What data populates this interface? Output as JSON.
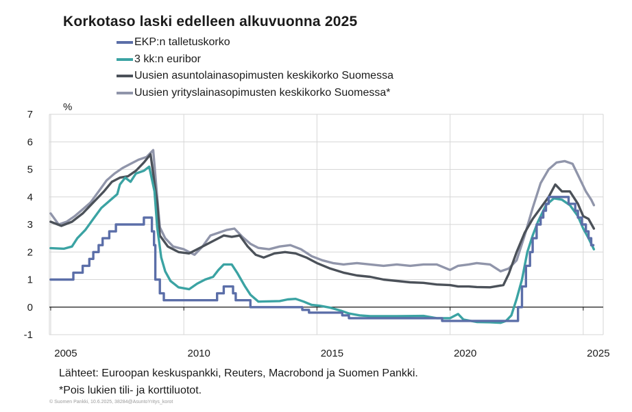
{
  "chart_data": {
    "type": "line",
    "title": "Korkotaso laski edelleen alkuvuonna  2025",
    "ylabel": "%",
    "xlabel": "",
    "ylim": [
      -1,
      7
    ],
    "xlim": [
      2004.95,
      2025.75
    ],
    "y_ticks": [
      -1,
      0,
      1,
      2,
      3,
      4,
      5,
      6,
      7
    ],
    "x_ticks": [
      2005,
      2010,
      2015,
      2020,
      2025
    ],
    "x_tick_labels": [
      "2005",
      "2010",
      "2015",
      "2020",
      "2025"
    ],
    "grid": true,
    "legend_position": "top",
    "series": [
      {
        "name": "EKP:n talletuskorko",
        "color": "#5b6ea8",
        "points": [
          [
            2005.0,
            1.0
          ],
          [
            2005.85,
            1.0
          ],
          [
            2005.85,
            1.25
          ],
          [
            2006.2,
            1.25
          ],
          [
            2006.2,
            1.5
          ],
          [
            2006.45,
            1.5
          ],
          [
            2006.45,
            1.75
          ],
          [
            2006.6,
            1.75
          ],
          [
            2006.6,
            2.0
          ],
          [
            2006.8,
            2.0
          ],
          [
            2006.8,
            2.25
          ],
          [
            2006.95,
            2.25
          ],
          [
            2006.95,
            2.5
          ],
          [
            2007.2,
            2.5
          ],
          [
            2007.2,
            2.75
          ],
          [
            2007.45,
            2.75
          ],
          [
            2007.45,
            3.0
          ],
          [
            2008.5,
            3.0
          ],
          [
            2008.5,
            3.25
          ],
          [
            2008.8,
            3.25
          ],
          [
            2008.8,
            2.75
          ],
          [
            2008.88,
            2.75
          ],
          [
            2008.88,
            2.25
          ],
          [
            2008.93,
            2.25
          ],
          [
            2008.93,
            1.0
          ],
          [
            2009.1,
            1.0
          ],
          [
            2009.1,
            0.5
          ],
          [
            2009.25,
            0.5
          ],
          [
            2009.25,
            0.25
          ],
          [
            2011.25,
            0.25
          ],
          [
            2011.25,
            0.5
          ],
          [
            2011.5,
            0.5
          ],
          [
            2011.5,
            0.75
          ],
          [
            2011.85,
            0.75
          ],
          [
            2011.85,
            0.5
          ],
          [
            2011.95,
            0.5
          ],
          [
            2011.95,
            0.25
          ],
          [
            2012.5,
            0.25
          ],
          [
            2012.5,
            0.0
          ],
          [
            2014.45,
            0.0
          ],
          [
            2014.45,
            -0.1
          ],
          [
            2014.7,
            -0.1
          ],
          [
            2014.7,
            -0.2
          ],
          [
            2015.95,
            -0.2
          ],
          [
            2015.95,
            -0.3
          ],
          [
            2016.2,
            -0.3
          ],
          [
            2016.2,
            -0.4
          ],
          [
            2019.7,
            -0.4
          ],
          [
            2019.7,
            -0.5
          ],
          [
            2022.55,
            -0.5
          ],
          [
            2022.55,
            0.0
          ],
          [
            2022.7,
            0.0
          ],
          [
            2022.7,
            0.75
          ],
          [
            2022.85,
            0.75
          ],
          [
            2022.85,
            1.5
          ],
          [
            2023.0,
            1.5
          ],
          [
            2023.0,
            2.0
          ],
          [
            2023.1,
            2.0
          ],
          [
            2023.1,
            2.5
          ],
          [
            2023.25,
            2.5
          ],
          [
            2023.25,
            3.0
          ],
          [
            2023.4,
            3.0
          ],
          [
            2023.4,
            3.25
          ],
          [
            2023.5,
            3.25
          ],
          [
            2023.5,
            3.5
          ],
          [
            2023.6,
            3.5
          ],
          [
            2023.6,
            3.75
          ],
          [
            2023.7,
            3.75
          ],
          [
            2023.7,
            4.0
          ],
          [
            2024.45,
            4.0
          ],
          [
            2024.45,
            3.75
          ],
          [
            2024.7,
            3.75
          ],
          [
            2024.7,
            3.5
          ],
          [
            2024.8,
            3.5
          ],
          [
            2024.8,
            3.25
          ],
          [
            2024.95,
            3.25
          ],
          [
            2024.95,
            3.0
          ],
          [
            2025.1,
            3.0
          ],
          [
            2025.1,
            2.75
          ],
          [
            2025.2,
            2.75
          ],
          [
            2025.2,
            2.5
          ],
          [
            2025.3,
            2.5
          ],
          [
            2025.3,
            2.25
          ],
          [
            2025.38,
            2.25
          ]
        ]
      },
      {
        "name": "3 kk:n euribor",
        "color": "#3ba3a3",
        "points": [
          [
            2005.0,
            2.14
          ],
          [
            2005.5,
            2.12
          ],
          [
            2005.8,
            2.2
          ],
          [
            2006.0,
            2.5
          ],
          [
            2006.3,
            2.8
          ],
          [
            2006.6,
            3.2
          ],
          [
            2006.9,
            3.6
          ],
          [
            2007.2,
            3.85
          ],
          [
            2007.5,
            4.1
          ],
          [
            2007.6,
            4.45
          ],
          [
            2007.8,
            4.7
          ],
          [
            2008.0,
            4.55
          ],
          [
            2008.2,
            4.85
          ],
          [
            2008.5,
            4.95
          ],
          [
            2008.7,
            5.1
          ],
          [
            2008.9,
            4.2
          ],
          [
            2009.0,
            2.9
          ],
          [
            2009.15,
            1.8
          ],
          [
            2009.3,
            1.3
          ],
          [
            2009.5,
            0.95
          ],
          [
            2009.8,
            0.72
          ],
          [
            2010.2,
            0.65
          ],
          [
            2010.5,
            0.85
          ],
          [
            2010.8,
            1.0
          ],
          [
            2011.1,
            1.1
          ],
          [
            2011.3,
            1.35
          ],
          [
            2011.5,
            1.55
          ],
          [
            2011.8,
            1.55
          ],
          [
            2012.0,
            1.25
          ],
          [
            2012.3,
            0.75
          ],
          [
            2012.5,
            0.45
          ],
          [
            2012.8,
            0.2
          ],
          [
            2013.2,
            0.21
          ],
          [
            2013.6,
            0.22
          ],
          [
            2013.9,
            0.28
          ],
          [
            2014.2,
            0.3
          ],
          [
            2014.5,
            0.2
          ],
          [
            2014.8,
            0.08
          ],
          [
            2015.1,
            0.05
          ],
          [
            2015.5,
            -0.02
          ],
          [
            2015.9,
            -0.13
          ],
          [
            2016.2,
            -0.23
          ],
          [
            2016.6,
            -0.3
          ],
          [
            2017.0,
            -0.33
          ],
          [
            2018.0,
            -0.33
          ],
          [
            2019.0,
            -0.32
          ],
          [
            2019.5,
            -0.4
          ],
          [
            2020.0,
            -0.4
          ],
          [
            2020.3,
            -0.25
          ],
          [
            2020.5,
            -0.45
          ],
          [
            2021.0,
            -0.54
          ],
          [
            2021.5,
            -0.55
          ],
          [
            2021.9,
            -0.57
          ],
          [
            2022.1,
            -0.5
          ],
          [
            2022.3,
            -0.3
          ],
          [
            2022.5,
            0.3
          ],
          [
            2022.7,
            1.0
          ],
          [
            2022.9,
            2.0
          ],
          [
            2023.1,
            2.6
          ],
          [
            2023.3,
            3.1
          ],
          [
            2023.6,
            3.7
          ],
          [
            2023.9,
            3.95
          ],
          [
            2024.2,
            3.9
          ],
          [
            2024.5,
            3.7
          ],
          [
            2024.8,
            3.3
          ],
          [
            2025.0,
            2.85
          ],
          [
            2025.2,
            2.5
          ],
          [
            2025.4,
            2.1
          ]
        ]
      },
      {
        "name": "Uusien asuntolainasopimusten keskikorko Suomessa",
        "color": "#4b5159",
        "points": [
          [
            2005.0,
            3.1
          ],
          [
            2005.4,
            2.95
          ],
          [
            2005.8,
            3.1
          ],
          [
            2006.2,
            3.4
          ],
          [
            2006.6,
            3.8
          ],
          [
            2007.0,
            4.2
          ],
          [
            2007.3,
            4.55
          ],
          [
            2007.6,
            4.7
          ],
          [
            2007.9,
            4.75
          ],
          [
            2008.2,
            4.95
          ],
          [
            2008.5,
            5.25
          ],
          [
            2008.75,
            5.55
          ],
          [
            2009.0,
            3.8
          ],
          [
            2009.1,
            2.6
          ],
          [
            2009.4,
            2.2
          ],
          [
            2009.8,
            2.0
          ],
          [
            2010.2,
            1.95
          ],
          [
            2010.5,
            2.1
          ],
          [
            2010.8,
            2.25
          ],
          [
            2011.2,
            2.45
          ],
          [
            2011.5,
            2.6
          ],
          [
            2011.8,
            2.55
          ],
          [
            2012.1,
            2.6
          ],
          [
            2012.4,
            2.2
          ],
          [
            2012.7,
            1.9
          ],
          [
            2013.0,
            1.8
          ],
          [
            2013.4,
            1.95
          ],
          [
            2013.8,
            2.0
          ],
          [
            2014.2,
            1.95
          ],
          [
            2014.6,
            1.8
          ],
          [
            2015.0,
            1.6
          ],
          [
            2015.5,
            1.4
          ],
          [
            2016.0,
            1.25
          ],
          [
            2016.5,
            1.15
          ],
          [
            2017.0,
            1.1
          ],
          [
            2017.5,
            1.0
          ],
          [
            2018.0,
            0.95
          ],
          [
            2018.5,
            0.9
          ],
          [
            2019.0,
            0.88
          ],
          [
            2019.5,
            0.82
          ],
          [
            2020.0,
            0.8
          ],
          [
            2020.3,
            0.75
          ],
          [
            2020.7,
            0.75
          ],
          [
            2021.0,
            0.73
          ],
          [
            2021.5,
            0.72
          ],
          [
            2022.0,
            0.8
          ],
          [
            2022.2,
            1.2
          ],
          [
            2022.5,
            2.0
          ],
          [
            2022.8,
            2.7
          ],
          [
            2023.1,
            3.2
          ],
          [
            2023.4,
            3.6
          ],
          [
            2023.7,
            4.0
          ],
          [
            2023.95,
            4.45
          ],
          [
            2024.2,
            4.2
          ],
          [
            2024.5,
            4.2
          ],
          [
            2024.8,
            3.75
          ],
          [
            2025.0,
            3.3
          ],
          [
            2025.2,
            3.2
          ],
          [
            2025.4,
            2.85
          ]
        ]
      },
      {
        "name": "Uusien yrityslainasopimusten keskikorko Suomessa*",
        "color": "#9095aa",
        "points": [
          [
            2005.0,
            3.4
          ],
          [
            2005.3,
            3.0
          ],
          [
            2005.6,
            3.1
          ],
          [
            2005.9,
            3.3
          ],
          [
            2006.2,
            3.55
          ],
          [
            2006.5,
            3.8
          ],
          [
            2006.8,
            4.2
          ],
          [
            2007.1,
            4.6
          ],
          [
            2007.4,
            4.85
          ],
          [
            2007.7,
            5.05
          ],
          [
            2008.0,
            5.2
          ],
          [
            2008.3,
            5.35
          ],
          [
            2008.6,
            5.45
          ],
          [
            2008.85,
            5.7
          ],
          [
            2009.0,
            4.0
          ],
          [
            2009.1,
            2.9
          ],
          [
            2009.3,
            2.5
          ],
          [
            2009.6,
            2.2
          ],
          [
            2010.0,
            2.1
          ],
          [
            2010.4,
            1.9
          ],
          [
            2010.7,
            2.2
          ],
          [
            2011.0,
            2.6
          ],
          [
            2011.3,
            2.7
          ],
          [
            2011.6,
            2.8
          ],
          [
            2011.9,
            2.85
          ],
          [
            2012.2,
            2.55
          ],
          [
            2012.5,
            2.3
          ],
          [
            2012.8,
            2.15
          ],
          [
            2013.2,
            2.1
          ],
          [
            2013.6,
            2.2
          ],
          [
            2014.0,
            2.25
          ],
          [
            2014.4,
            2.1
          ],
          [
            2014.8,
            1.85
          ],
          [
            2015.2,
            1.7
          ],
          [
            2015.6,
            1.6
          ],
          [
            2016.0,
            1.55
          ],
          [
            2016.5,
            1.6
          ],
          [
            2017.0,
            1.55
          ],
          [
            2017.5,
            1.5
          ],
          [
            2018.0,
            1.55
          ],
          [
            2018.5,
            1.5
          ],
          [
            2019.0,
            1.55
          ],
          [
            2019.5,
            1.55
          ],
          [
            2020.0,
            1.35
          ],
          [
            2020.3,
            1.5
          ],
          [
            2020.7,
            1.55
          ],
          [
            2021.0,
            1.6
          ],
          [
            2021.5,
            1.55
          ],
          [
            2021.9,
            1.3
          ],
          [
            2022.2,
            1.4
          ],
          [
            2022.5,
            1.7
          ],
          [
            2022.8,
            2.6
          ],
          [
            2023.1,
            3.6
          ],
          [
            2023.4,
            4.5
          ],
          [
            2023.7,
            5.0
          ],
          [
            2024.0,
            5.25
          ],
          [
            2024.3,
            5.3
          ],
          [
            2024.6,
            5.2
          ],
          [
            2024.9,
            4.6
          ],
          [
            2025.1,
            4.2
          ],
          [
            2025.3,
            3.9
          ],
          [
            2025.4,
            3.7
          ]
        ]
      }
    ]
  },
  "footer": {
    "source": "Lähteet: Euroopan keskuspankki, Reuters, Macrobond ja Suomen Pankki.",
    "note": "*Pois lukien tili- ja korttiluotot.",
    "credit": "© Suomen Pankki, 10.6.2025, 38284@AsuntoYritys_korot"
  }
}
